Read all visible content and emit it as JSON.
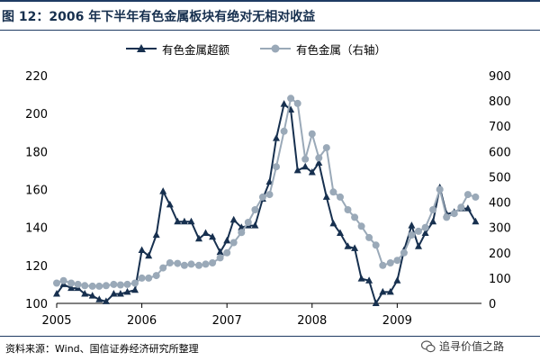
{
  "title": "图 12：2006 年下半年有色金属板块有绝对无相对收益",
  "source": "资料来源：Wind、国信证券经济研究所整理",
  "watermark": "追寻价值之路",
  "colors": {
    "excess": "#17304f",
    "metal": "#9aa9b8",
    "title": "#17304f"
  },
  "chart_data": {
    "type": "line",
    "left_axis": {
      "min": 100,
      "max": 220,
      "ticks": [
        100,
        120,
        140,
        160,
        180,
        200,
        220
      ]
    },
    "right_axis": {
      "min": 0,
      "max": 900,
      "ticks": [
        0,
        100,
        200,
        300,
        400,
        500,
        600,
        700,
        800,
        900
      ]
    },
    "x_axis": {
      "min": 2005.0,
      "max": 2009.99,
      "ticks": [
        "2005",
        "2006",
        "2007",
        "2008",
        "2009"
      ]
    },
    "grid": false,
    "legend": "top",
    "series": [
      {
        "name": "有色金属超额",
        "axis": "left",
        "marker": "triangle",
        "points": [
          [
            2005.0,
            105
          ],
          [
            2005.08,
            110
          ],
          [
            2005.17,
            108
          ],
          [
            2005.25,
            108
          ],
          [
            2005.33,
            105
          ],
          [
            2005.42,
            104
          ],
          [
            2005.5,
            102
          ],
          [
            2005.58,
            101
          ],
          [
            2005.67,
            105
          ],
          [
            2005.75,
            105
          ],
          [
            2005.83,
            106
          ],
          [
            2005.92,
            107
          ],
          [
            2006.0,
            128
          ],
          [
            2006.08,
            125
          ],
          [
            2006.17,
            136
          ],
          [
            2006.25,
            159
          ],
          [
            2006.33,
            152
          ],
          [
            2006.42,
            143
          ],
          [
            2006.5,
            143
          ],
          [
            2006.58,
            143
          ],
          [
            2006.67,
            134
          ],
          [
            2006.75,
            137
          ],
          [
            2006.83,
            135
          ],
          [
            2006.92,
            127
          ],
          [
            2007.0,
            133
          ],
          [
            2007.08,
            144
          ],
          [
            2007.17,
            140
          ],
          [
            2007.25,
            141
          ],
          [
            2007.33,
            141
          ],
          [
            2007.42,
            155
          ],
          [
            2007.5,
            164
          ],
          [
            2007.58,
            187
          ],
          [
            2007.67,
            205
          ],
          [
            2007.75,
            202
          ],
          [
            2007.83,
            170
          ],
          [
            2007.92,
            172
          ],
          [
            2008.0,
            169
          ],
          [
            2008.08,
            174
          ],
          [
            2008.17,
            156
          ],
          [
            2008.25,
            142
          ],
          [
            2008.33,
            137
          ],
          [
            2008.42,
            130
          ],
          [
            2008.5,
            129
          ],
          [
            2008.58,
            113
          ],
          [
            2008.67,
            112
          ],
          [
            2008.75,
            100
          ],
          [
            2008.83,
            106
          ],
          [
            2008.92,
            106
          ],
          [
            2009.0,
            112
          ],
          [
            2009.08,
            128
          ],
          [
            2009.17,
            141
          ],
          [
            2009.25,
            130
          ],
          [
            2009.33,
            137
          ],
          [
            2009.42,
            143
          ],
          [
            2009.5,
            161
          ],
          [
            2009.58,
            147
          ],
          [
            2009.67,
            148
          ],
          [
            2009.75,
            150
          ],
          [
            2009.83,
            150
          ],
          [
            2009.92,
            143
          ]
        ]
      },
      {
        "name": "有色金属（右轴）",
        "axis": "right",
        "marker": "circle",
        "points": [
          [
            2005.0,
            80
          ],
          [
            2005.08,
            90
          ],
          [
            2005.17,
            80
          ],
          [
            2005.25,
            75
          ],
          [
            2005.33,
            70
          ],
          [
            2005.42,
            68
          ],
          [
            2005.5,
            68
          ],
          [
            2005.58,
            70
          ],
          [
            2005.67,
            75
          ],
          [
            2005.75,
            73
          ],
          [
            2005.83,
            75
          ],
          [
            2005.92,
            80
          ],
          [
            2006.0,
            100
          ],
          [
            2006.08,
            100
          ],
          [
            2006.17,
            110
          ],
          [
            2006.25,
            140
          ],
          [
            2006.33,
            160
          ],
          [
            2006.42,
            158
          ],
          [
            2006.5,
            150
          ],
          [
            2006.58,
            155
          ],
          [
            2006.67,
            150
          ],
          [
            2006.75,
            155
          ],
          [
            2006.83,
            160
          ],
          [
            2006.92,
            180
          ],
          [
            2007.0,
            200
          ],
          [
            2007.08,
            240
          ],
          [
            2007.17,
            280
          ],
          [
            2007.25,
            320
          ],
          [
            2007.33,
            370
          ],
          [
            2007.42,
            420
          ],
          [
            2007.5,
            430
          ],
          [
            2007.58,
            540
          ],
          [
            2007.67,
            680
          ],
          [
            2007.75,
            810
          ],
          [
            2007.83,
            790
          ],
          [
            2007.92,
            570
          ],
          [
            2008.0,
            670
          ],
          [
            2008.08,
            575
          ],
          [
            2008.17,
            615
          ],
          [
            2008.25,
            440
          ],
          [
            2008.33,
            420
          ],
          [
            2008.42,
            370
          ],
          [
            2008.5,
            340
          ],
          [
            2008.58,
            305
          ],
          [
            2008.67,
            260
          ],
          [
            2008.75,
            230
          ],
          [
            2008.83,
            150
          ],
          [
            2008.92,
            160
          ],
          [
            2009.0,
            170
          ],
          [
            2009.08,
            200
          ],
          [
            2009.17,
            270
          ],
          [
            2009.25,
            285
          ],
          [
            2009.33,
            300
          ],
          [
            2009.42,
            370
          ],
          [
            2009.5,
            450
          ],
          [
            2009.58,
            340
          ],
          [
            2009.67,
            355
          ],
          [
            2009.75,
            380
          ],
          [
            2009.83,
            430
          ],
          [
            2009.92,
            420
          ]
        ]
      }
    ]
  }
}
